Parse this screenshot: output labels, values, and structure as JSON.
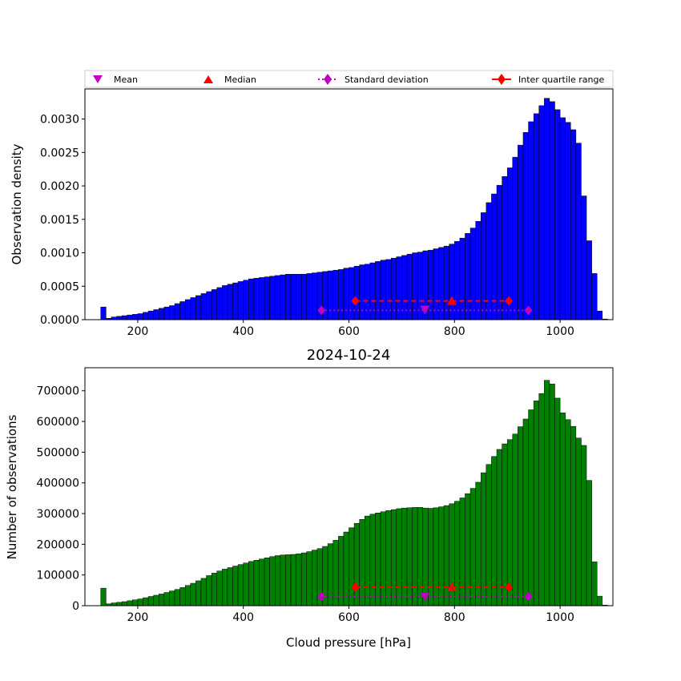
{
  "legend": {
    "entries": [
      {
        "label": "Mean",
        "color": "#bf00bf",
        "marker": "triangle-down",
        "line": "none"
      },
      {
        "label": "Median",
        "color": "#ff0000",
        "marker": "triangle-up",
        "line": "none"
      },
      {
        "label": "Standard deviation",
        "color": "#bf00bf",
        "marker": "diamond",
        "line": "dotted"
      },
      {
        "label": "Inter quartile range",
        "color": "#ff0000",
        "marker": "diamond",
        "line": "solid"
      }
    ],
    "placement": "top, above upper panel"
  },
  "chart_data": [
    {
      "type": "bar",
      "panel": "top",
      "bar_color": "#0000ff",
      "bin_edges_start": 130,
      "bin_width": 10,
      "xlim": [
        100,
        1100
      ],
      "ylim": [
        0,
        0.00345
      ],
      "xticks": [
        200,
        400,
        600,
        800,
        1000
      ],
      "yticks": [
        0.0,
        0.0005,
        0.001,
        0.0015,
        0.002,
        0.0025,
        0.003
      ],
      "ytick_labels": [
        "0.0000",
        "0.0005",
        "0.0010",
        "0.0015",
        "0.0020",
        "0.0025",
        "0.0030"
      ],
      "xlabel": "",
      "ylabel": "Observation density",
      "values": [
        0.00019,
        2e-05,
        4e-05,
        5e-05,
        6e-05,
        7e-05,
        8e-05,
        9e-05,
        0.00011,
        0.00013,
        0.00015,
        0.00017,
        0.00019,
        0.00021,
        0.00024,
        0.00027,
        0.0003,
        0.00033,
        0.00036,
        0.00039,
        0.00042,
        0.00045,
        0.00048,
        0.00051,
        0.00053,
        0.00055,
        0.00057,
        0.00059,
        0.00061,
        0.00062,
        0.00063,
        0.00064,
        0.00065,
        0.00066,
        0.00067,
        0.00068,
        0.00068,
        0.00068,
        0.00068,
        0.00069,
        0.0007,
        0.00071,
        0.00072,
        0.00073,
        0.00074,
        0.00075,
        0.00077,
        0.00078,
        0.0008,
        0.00082,
        0.00083,
        0.00085,
        0.00087,
        0.00089,
        0.0009,
        0.00092,
        0.00094,
        0.00096,
        0.00098,
        0.001,
        0.00101,
        0.00103,
        0.00104,
        0.00106,
        0.00108,
        0.0011,
        0.00113,
        0.00117,
        0.00122,
        0.00129,
        0.00137,
        0.00147,
        0.0016,
        0.00175,
        0.00188,
        0.00201,
        0.00214,
        0.00227,
        0.00243,
        0.00261,
        0.0028,
        0.00296,
        0.00308,
        0.0032,
        0.00331,
        0.00326,
        0.00314,
        0.00302,
        0.00295,
        0.00284,
        0.00264,
        0.00185,
        0.00118,
        0.00069,
        0.00013,
        1e-05
      ],
      "summary": {
        "mean": {
          "x": 744,
          "y": 0.00015
        },
        "median": {
          "x": 795,
          "y": 0.00028
        },
        "std_dev": {
          "x": [
            548,
            940
          ],
          "y": 0.00014
        },
        "iqr": {
          "x": [
            612,
            903
          ],
          "y": 0.00028
        }
      }
    },
    {
      "type": "bar",
      "panel": "bottom",
      "title": "2024-10-24",
      "bar_color": "#008000",
      "bin_edges_start": 130,
      "bin_width": 10,
      "xlim": [
        100,
        1100
      ],
      "ylim": [
        0,
        775000
      ],
      "xticks": [
        200,
        400,
        600,
        800,
        1000
      ],
      "yticks": [
        0,
        100000,
        200000,
        300000,
        400000,
        500000,
        600000,
        700000
      ],
      "ytick_labels": [
        "0",
        "100000",
        "200000",
        "300000",
        "400000",
        "500000",
        "600000",
        "700000"
      ],
      "xlabel": "Cloud pressure [hPa]",
      "ylabel": "Number of observations",
      "values": [
        57000,
        6000,
        9000,
        11000,
        13000,
        16000,
        19000,
        22000,
        26000,
        30000,
        34000,
        38000,
        43000,
        48000,
        53000,
        59000,
        66000,
        73000,
        81000,
        89000,
        98000,
        106000,
        113000,
        119000,
        124000,
        129000,
        134000,
        139000,
        144000,
        148000,
        152000,
        156000,
        160000,
        163000,
        165000,
        166000,
        167000,
        169000,
        172000,
        176000,
        181000,
        186000,
        193000,
        202000,
        213000,
        226000,
        240000,
        254000,
        268000,
        281000,
        292000,
        298000,
        302000,
        306000,
        310000,
        313000,
        316000,
        318000,
        319000,
        320000,
        320000,
        318000,
        317000,
        319000,
        322000,
        326000,
        332000,
        340000,
        351000,
        365000,
        382000,
        402000,
        433000,
        460000,
        486000,
        509000,
        527000,
        541000,
        559000,
        583000,
        608000,
        638000,
        667000,
        691000,
        734000,
        722000,
        676000,
        628000,
        606000,
        584000,
        546000,
        522000,
        408000,
        143000,
        31000,
        2000
      ],
      "summary": {
        "mean": {
          "x": 744,
          "y": 30000
        },
        "median": {
          "x": 795,
          "y": 60000
        },
        "std_dev": {
          "x": [
            548,
            940
          ],
          "y": 30000
        },
        "iqr": {
          "x": [
            612,
            903
          ],
          "y": 60000
        }
      }
    }
  ]
}
